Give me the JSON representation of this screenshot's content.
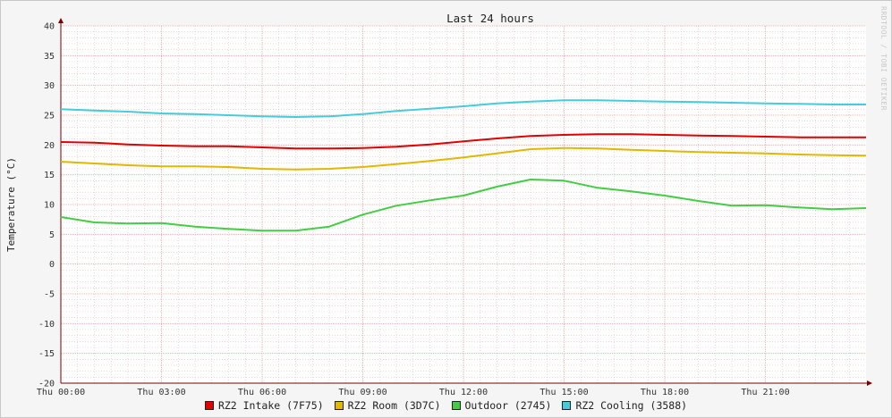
{
  "chart_data": {
    "type": "line",
    "title": "Last 24 hours",
    "ylabel": "Temperature (°C)",
    "xlabel": "",
    "ylim": [
      -20,
      40
    ],
    "yticks": [
      40,
      35,
      30,
      25,
      20,
      15,
      10,
      5,
      0,
      -5,
      -10,
      -15,
      -20
    ],
    "ytick_labels": [
      "40",
      "35",
      "30",
      "25",
      "20",
      "15",
      "10",
      "5",
      "0",
      "-5",
      "-10",
      "-15",
      "-20"
    ],
    "xlim": [
      0,
      24
    ],
    "xticks": [
      0,
      3,
      6,
      9,
      12,
      15,
      18,
      21
    ],
    "xtick_labels": [
      "Thu 00:00",
      "Thu 03:00",
      "Thu 06:00",
      "Thu 09:00",
      "Thu 12:00",
      "Thu 15:00",
      "Thu 18:00",
      "Thu 21:00"
    ],
    "grid": true,
    "legend_position": "bottom",
    "watermark": "RRDTOOL / TOBI OETIKER",
    "colors": {
      "background": "#f5f5f5",
      "grid_minor": "#e2bcbc",
      "grid_major": "#e8a0a0",
      "axis": "#7a0000"
    },
    "series": [
      {
        "name": "RZ2 Intake (7F75)",
        "color": "#e00000",
        "x": [
          0,
          1,
          2,
          3,
          4,
          5,
          6,
          7,
          8,
          9,
          10,
          11,
          12,
          13,
          14,
          15,
          16,
          17,
          18,
          19,
          20,
          21,
          22,
          23,
          24
        ],
        "values": [
          20.5,
          20.4,
          20.1,
          19.9,
          19.8,
          19.8,
          19.6,
          19.4,
          19.4,
          19.5,
          19.7,
          20.1,
          20.6,
          21.1,
          21.5,
          21.7,
          21.8,
          21.8,
          21.7,
          21.6,
          21.5,
          21.4,
          21.3,
          21.3,
          21.3
        ]
      },
      {
        "name": "RZ2 Room (3D7C)",
        "color": "#e0b800",
        "x": [
          0,
          1,
          2,
          3,
          4,
          5,
          6,
          7,
          8,
          9,
          10,
          11,
          12,
          13,
          14,
          15,
          16,
          17,
          18,
          19,
          20,
          21,
          22,
          23,
          24
        ],
        "values": [
          17.2,
          16.9,
          16.6,
          16.4,
          16.4,
          16.3,
          16.0,
          15.9,
          16.0,
          16.3,
          16.8,
          17.3,
          17.9,
          18.6,
          19.3,
          19.5,
          19.4,
          19.2,
          19.0,
          18.8,
          18.7,
          18.6,
          18.4,
          18.3,
          18.2
        ]
      },
      {
        "name": "Outdoor (2745)",
        "color": "#44cc44",
        "x": [
          0,
          1,
          2,
          3,
          4,
          5,
          6,
          7,
          8,
          9,
          10,
          11,
          12,
          13,
          14,
          15,
          16,
          17,
          18,
          19,
          20,
          21,
          22,
          23,
          24
        ],
        "values": [
          7.9,
          7.0,
          6.8,
          6.9,
          6.3,
          5.9,
          5.6,
          5.6,
          6.3,
          8.3,
          9.8,
          10.7,
          11.5,
          13.0,
          14.2,
          14.0,
          12.8,
          12.2,
          11.5,
          10.6,
          9.8,
          9.9,
          9.5,
          9.2,
          9.4
        ]
      },
      {
        "name": "RZ2 Cooling (3588)",
        "color": "#44ccdd",
        "x": [
          0,
          1,
          2,
          3,
          4,
          5,
          6,
          7,
          8,
          9,
          10,
          11,
          12,
          13,
          14,
          15,
          16,
          17,
          18,
          19,
          20,
          21,
          22,
          23,
          24
        ],
        "values": [
          26.0,
          25.8,
          25.6,
          25.3,
          25.2,
          25.0,
          24.8,
          24.7,
          24.8,
          25.2,
          25.7,
          26.1,
          26.5,
          27.0,
          27.3,
          27.5,
          27.5,
          27.4,
          27.3,
          27.2,
          27.1,
          27.0,
          26.9,
          26.8,
          26.8
        ]
      }
    ]
  }
}
